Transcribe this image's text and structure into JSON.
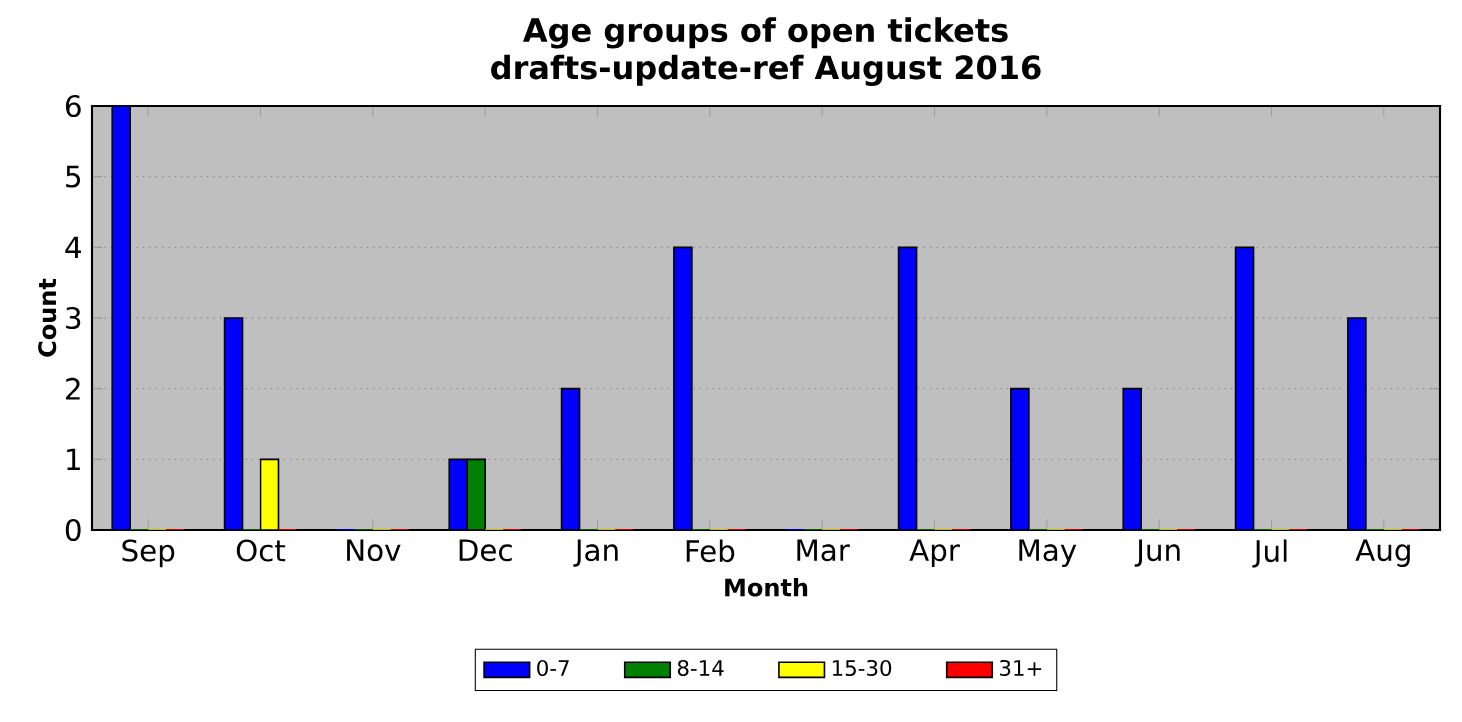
{
  "chart_data": {
    "type": "bar",
    "title": "Age groups of open tickets",
    "subtitle": "drafts-update-ref August 2016",
    "xlabel": "Month",
    "ylabel": "Count",
    "categories": [
      "Sep",
      "Oct",
      "Nov",
      "Dec",
      "Jan",
      "Feb",
      "Mar",
      "Apr",
      "May",
      "Jun",
      "Jul",
      "Aug"
    ],
    "series": [
      {
        "name": "0-7",
        "color": "#0000ff",
        "values": [
          6,
          3,
          0,
          1,
          2,
          4,
          0,
          4,
          2,
          2,
          4,
          3
        ]
      },
      {
        "name": "8-14",
        "color": "#008000",
        "values": [
          0,
          0,
          0,
          1,
          0,
          0,
          0,
          0,
          0,
          0,
          0,
          0
        ]
      },
      {
        "name": "15-30",
        "color": "#ffff00",
        "values": [
          0,
          1,
          0,
          0,
          0,
          0,
          0,
          0,
          0,
          0,
          0,
          0
        ]
      },
      {
        "name": "31+",
        "color": "#ff0000",
        "values": [
          0,
          0,
          0,
          0,
          0,
          0,
          0,
          0,
          0,
          0,
          0,
          0
        ]
      }
    ],
    "ylim": [
      0,
      6
    ],
    "yticks": [
      0,
      1,
      2,
      3,
      4,
      5,
      6
    ],
    "grid": "y",
    "legend": "bottom"
  }
}
